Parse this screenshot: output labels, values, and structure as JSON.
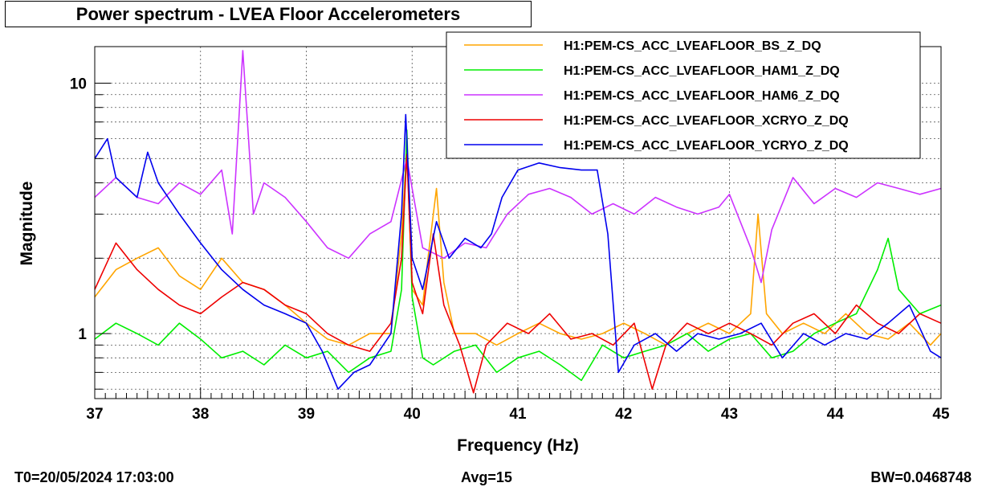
{
  "title": "Power spectrum - LVEA Floor Accelerometers",
  "footer": {
    "left": "T0=20/05/2024 17:03:00",
    "center": "Avg=15",
    "right": "BW=0.0468748"
  },
  "chart_data": {
    "type": "line",
    "xlabel": "Frequency (Hz)",
    "ylabel": "Magnitude",
    "xlim": [
      37,
      45
    ],
    "ylim": [
      0.55,
      14
    ],
    "yscale": "log",
    "grid": true,
    "legend_position": "top-right",
    "x_ticks": [
      "37",
      "38",
      "39",
      "40",
      "41",
      "42",
      "43",
      "44",
      "45"
    ],
    "y_ticks": [
      "1",
      "10"
    ],
    "series": [
      {
        "name": "H1:PEM-CS_ACC_LVEAFLOOR_BS_Z_DQ",
        "color": "#ffa500",
        "points": [
          [
            37.0,
            1.4
          ],
          [
            37.2,
            1.8
          ],
          [
            37.4,
            2.0
          ],
          [
            37.6,
            2.2
          ],
          [
            37.8,
            1.7
          ],
          [
            38.0,
            1.5
          ],
          [
            38.2,
            2.0
          ],
          [
            38.4,
            1.6
          ],
          [
            38.6,
            1.5
          ],
          [
            38.8,
            1.3
          ],
          [
            39.0,
            1.1
          ],
          [
            39.2,
            0.95
          ],
          [
            39.4,
            0.9
          ],
          [
            39.6,
            1.0
          ],
          [
            39.8,
            1.0
          ],
          [
            39.9,
            2.5
          ],
          [
            39.95,
            5.5
          ],
          [
            40.0,
            1.5
          ],
          [
            40.1,
            1.3
          ],
          [
            40.15,
            2.0
          ],
          [
            40.23,
            3.8
          ],
          [
            40.3,
            1.6
          ],
          [
            40.4,
            1.0
          ],
          [
            40.6,
            1.0
          ],
          [
            40.8,
            0.9
          ],
          [
            41.0,
            1.0
          ],
          [
            41.2,
            1.1
          ],
          [
            41.4,
            1.0
          ],
          [
            41.6,
            0.95
          ],
          [
            41.8,
            1.0
          ],
          [
            42.0,
            1.1
          ],
          [
            42.2,
            1.0
          ],
          [
            42.4,
            0.9
          ],
          [
            42.6,
            1.0
          ],
          [
            42.8,
            1.1
          ],
          [
            43.0,
            1.0
          ],
          [
            43.2,
            1.2
          ],
          [
            43.27,
            3.0
          ],
          [
            43.35,
            1.2
          ],
          [
            43.5,
            1.0
          ],
          [
            43.7,
            1.1
          ],
          [
            43.9,
            1.0
          ],
          [
            44.1,
            1.2
          ],
          [
            44.3,
            1.0
          ],
          [
            44.5,
            0.95
          ],
          [
            44.7,
            1.1
          ],
          [
            44.9,
            0.9
          ],
          [
            45.0,
            1.0
          ]
        ]
      },
      {
        "name": "H1:PEM-CS_ACC_LVEAFLOOR_HAM1_Z_DQ",
        "color": "#00ee00",
        "points": [
          [
            37.0,
            0.95
          ],
          [
            37.2,
            1.1
          ],
          [
            37.4,
            1.0
          ],
          [
            37.6,
            0.9
          ],
          [
            37.8,
            1.1
          ],
          [
            38.0,
            0.95
          ],
          [
            38.2,
            0.8
          ],
          [
            38.4,
            0.85
          ],
          [
            38.6,
            0.75
          ],
          [
            38.8,
            0.9
          ],
          [
            39.0,
            0.8
          ],
          [
            39.2,
            0.85
          ],
          [
            39.4,
            0.7
          ],
          [
            39.6,
            0.8
          ],
          [
            39.8,
            0.85
          ],
          [
            39.9,
            1.5
          ],
          [
            39.95,
            6.5
          ],
          [
            40.0,
            1.4
          ],
          [
            40.1,
            0.8
          ],
          [
            40.2,
            0.75
          ],
          [
            40.4,
            0.85
          ],
          [
            40.6,
            0.9
          ],
          [
            40.8,
            0.7
          ],
          [
            41.0,
            0.8
          ],
          [
            41.2,
            0.85
          ],
          [
            41.4,
            0.75
          ],
          [
            41.6,
            0.65
          ],
          [
            41.8,
            0.9
          ],
          [
            42.0,
            0.8
          ],
          [
            42.2,
            0.85
          ],
          [
            42.4,
            0.9
          ],
          [
            42.6,
            1.0
          ],
          [
            42.8,
            0.85
          ],
          [
            43.0,
            0.95
          ],
          [
            43.2,
            1.0
          ],
          [
            43.4,
            0.8
          ],
          [
            43.6,
            0.85
          ],
          [
            43.8,
            1.0
          ],
          [
            44.0,
            1.1
          ],
          [
            44.2,
            1.2
          ],
          [
            44.4,
            1.8
          ],
          [
            44.5,
            2.4
          ],
          [
            44.6,
            1.5
          ],
          [
            44.8,
            1.2
          ],
          [
            45.0,
            1.3
          ]
        ]
      },
      {
        "name": "H1:PEM-CS_ACC_LVEAFLOOR_HAM6_Z_DQ",
        "color": "#cc33ff",
        "points": [
          [
            37.0,
            3.5
          ],
          [
            37.2,
            4.2
          ],
          [
            37.4,
            3.5
          ],
          [
            37.6,
            3.3
          ],
          [
            37.8,
            4.0
          ],
          [
            38.0,
            3.6
          ],
          [
            38.2,
            4.5
          ],
          [
            38.3,
            2.5
          ],
          [
            38.4,
            13.5
          ],
          [
            38.5,
            3.0
          ],
          [
            38.6,
            4.0
          ],
          [
            38.8,
            3.5
          ],
          [
            39.0,
            2.8
          ],
          [
            39.2,
            2.2
          ],
          [
            39.4,
            2.0
          ],
          [
            39.6,
            2.5
          ],
          [
            39.8,
            2.8
          ],
          [
            39.95,
            5.0
          ],
          [
            40.1,
            2.2
          ],
          [
            40.3,
            2.0
          ],
          [
            40.5,
            2.3
          ],
          [
            40.7,
            2.2
          ],
          [
            40.9,
            3.0
          ],
          [
            41.1,
            3.6
          ],
          [
            41.3,
            3.8
          ],
          [
            41.5,
            3.5
          ],
          [
            41.7,
            3.0
          ],
          [
            41.9,
            3.3
          ],
          [
            42.1,
            3.0
          ],
          [
            42.3,
            3.5
          ],
          [
            42.5,
            3.2
          ],
          [
            42.7,
            3.0
          ],
          [
            42.9,
            3.2
          ],
          [
            43.0,
            3.6
          ],
          [
            43.2,
            2.2
          ],
          [
            43.3,
            1.6
          ],
          [
            43.4,
            2.6
          ],
          [
            43.6,
            4.2
          ],
          [
            43.8,
            3.3
          ],
          [
            44.0,
            3.8
          ],
          [
            44.2,
            3.5
          ],
          [
            44.4,
            4.0
          ],
          [
            44.6,
            3.8
          ],
          [
            44.8,
            3.6
          ],
          [
            45.0,
            3.8
          ]
        ]
      },
      {
        "name": "H1:PEM-CS_ACC_LVEAFLOOR_XCRYO_Z_DQ",
        "color": "#ee0000",
        "points": [
          [
            37.0,
            1.5
          ],
          [
            37.2,
            2.3
          ],
          [
            37.4,
            1.8
          ],
          [
            37.6,
            1.5
          ],
          [
            37.8,
            1.3
          ],
          [
            38.0,
            1.2
          ],
          [
            38.2,
            1.4
          ],
          [
            38.4,
            1.6
          ],
          [
            38.6,
            1.5
          ],
          [
            38.8,
            1.3
          ],
          [
            39.0,
            1.2
          ],
          [
            39.2,
            1.0
          ],
          [
            39.4,
            0.9
          ],
          [
            39.6,
            0.85
          ],
          [
            39.8,
            1.1
          ],
          [
            39.9,
            2.0
          ],
          [
            39.95,
            5.2
          ],
          [
            40.0,
            1.6
          ],
          [
            40.1,
            1.2
          ],
          [
            40.2,
            2.5
          ],
          [
            40.3,
            1.3
          ],
          [
            40.45,
            0.9
          ],
          [
            40.58,
            0.58
          ],
          [
            40.7,
            0.9
          ],
          [
            40.9,
            1.1
          ],
          [
            41.1,
            1.0
          ],
          [
            41.3,
            1.2
          ],
          [
            41.5,
            0.95
          ],
          [
            41.7,
            1.0
          ],
          [
            41.9,
            0.9
          ],
          [
            42.1,
            1.1
          ],
          [
            42.27,
            0.6
          ],
          [
            42.4,
            0.9
          ],
          [
            42.6,
            1.1
          ],
          [
            42.8,
            1.0
          ],
          [
            43.0,
            1.1
          ],
          [
            43.2,
            1.0
          ],
          [
            43.4,
            0.9
          ],
          [
            43.6,
            1.1
          ],
          [
            43.8,
            1.2
          ],
          [
            44.0,
            1.0
          ],
          [
            44.2,
            1.3
          ],
          [
            44.4,
            1.1
          ],
          [
            44.6,
            1.0
          ],
          [
            44.8,
            1.2
          ],
          [
            45.0,
            1.1
          ]
        ]
      },
      {
        "name": "H1:PEM-CS_ACC_LVEAFLOOR_YCRYO_Z_DQ",
        "color": "#0000ee",
        "points": [
          [
            37.0,
            5.0
          ],
          [
            37.12,
            6.0
          ],
          [
            37.2,
            4.2
          ],
          [
            37.4,
            3.5
          ],
          [
            37.5,
            5.3
          ],
          [
            37.6,
            4.0
          ],
          [
            37.8,
            3.0
          ],
          [
            38.0,
            2.3
          ],
          [
            38.2,
            1.8
          ],
          [
            38.4,
            1.5
          ],
          [
            38.6,
            1.3
          ],
          [
            38.8,
            1.2
          ],
          [
            39.0,
            1.1
          ],
          [
            39.15,
            0.85
          ],
          [
            39.3,
            0.6
          ],
          [
            39.45,
            0.7
          ],
          [
            39.6,
            0.75
          ],
          [
            39.8,
            1.0
          ],
          [
            39.9,
            3.0
          ],
          [
            39.94,
            7.5
          ],
          [
            40.0,
            2.0
          ],
          [
            40.1,
            1.5
          ],
          [
            40.23,
            2.8
          ],
          [
            40.35,
            2.0
          ],
          [
            40.5,
            2.4
          ],
          [
            40.65,
            2.2
          ],
          [
            40.75,
            2.5
          ],
          [
            40.85,
            3.5
          ],
          [
            41.0,
            4.5
          ],
          [
            41.2,
            4.8
          ],
          [
            41.4,
            4.6
          ],
          [
            41.6,
            4.5
          ],
          [
            41.75,
            4.5
          ],
          [
            41.85,
            2.5
          ],
          [
            41.95,
            0.7
          ],
          [
            42.1,
            0.9
          ],
          [
            42.3,
            1.0
          ],
          [
            42.5,
            0.85
          ],
          [
            42.7,
            1.0
          ],
          [
            42.9,
            0.95
          ],
          [
            43.1,
            1.0
          ],
          [
            43.3,
            1.1
          ],
          [
            43.5,
            0.8
          ],
          [
            43.7,
            1.0
          ],
          [
            43.9,
            0.9
          ],
          [
            44.1,
            1.0
          ],
          [
            44.3,
            0.95
          ],
          [
            44.5,
            1.1
          ],
          [
            44.7,
            1.3
          ],
          [
            44.9,
            0.85
          ],
          [
            45.0,
            0.8
          ]
        ]
      }
    ]
  }
}
